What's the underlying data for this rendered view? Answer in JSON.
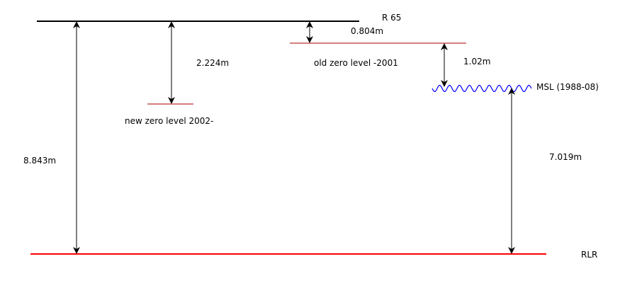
{
  "diagram": {
    "labels": {
      "r65": "R 65",
      "rlr": "RLR",
      "msl": "MSL (1988-08)",
      "old_zero": "old zero level -2001",
      "new_zero": "new zero level 2002-"
    },
    "measurements": {
      "r65_to_rlr": "8.843m",
      "r65_to_new_zero": "2.224m",
      "r65_to_old_zero": "0.804m",
      "old_zero_to_msl": "1.02m",
      "msl_to_rlr": "7.019m"
    },
    "colors": {
      "benchmark_line": "#000000",
      "datum_line": "#ff0000",
      "zero_level_line": "#aa0000",
      "sea_level": "#0000ff",
      "arrow": "#000000"
    }
  }
}
